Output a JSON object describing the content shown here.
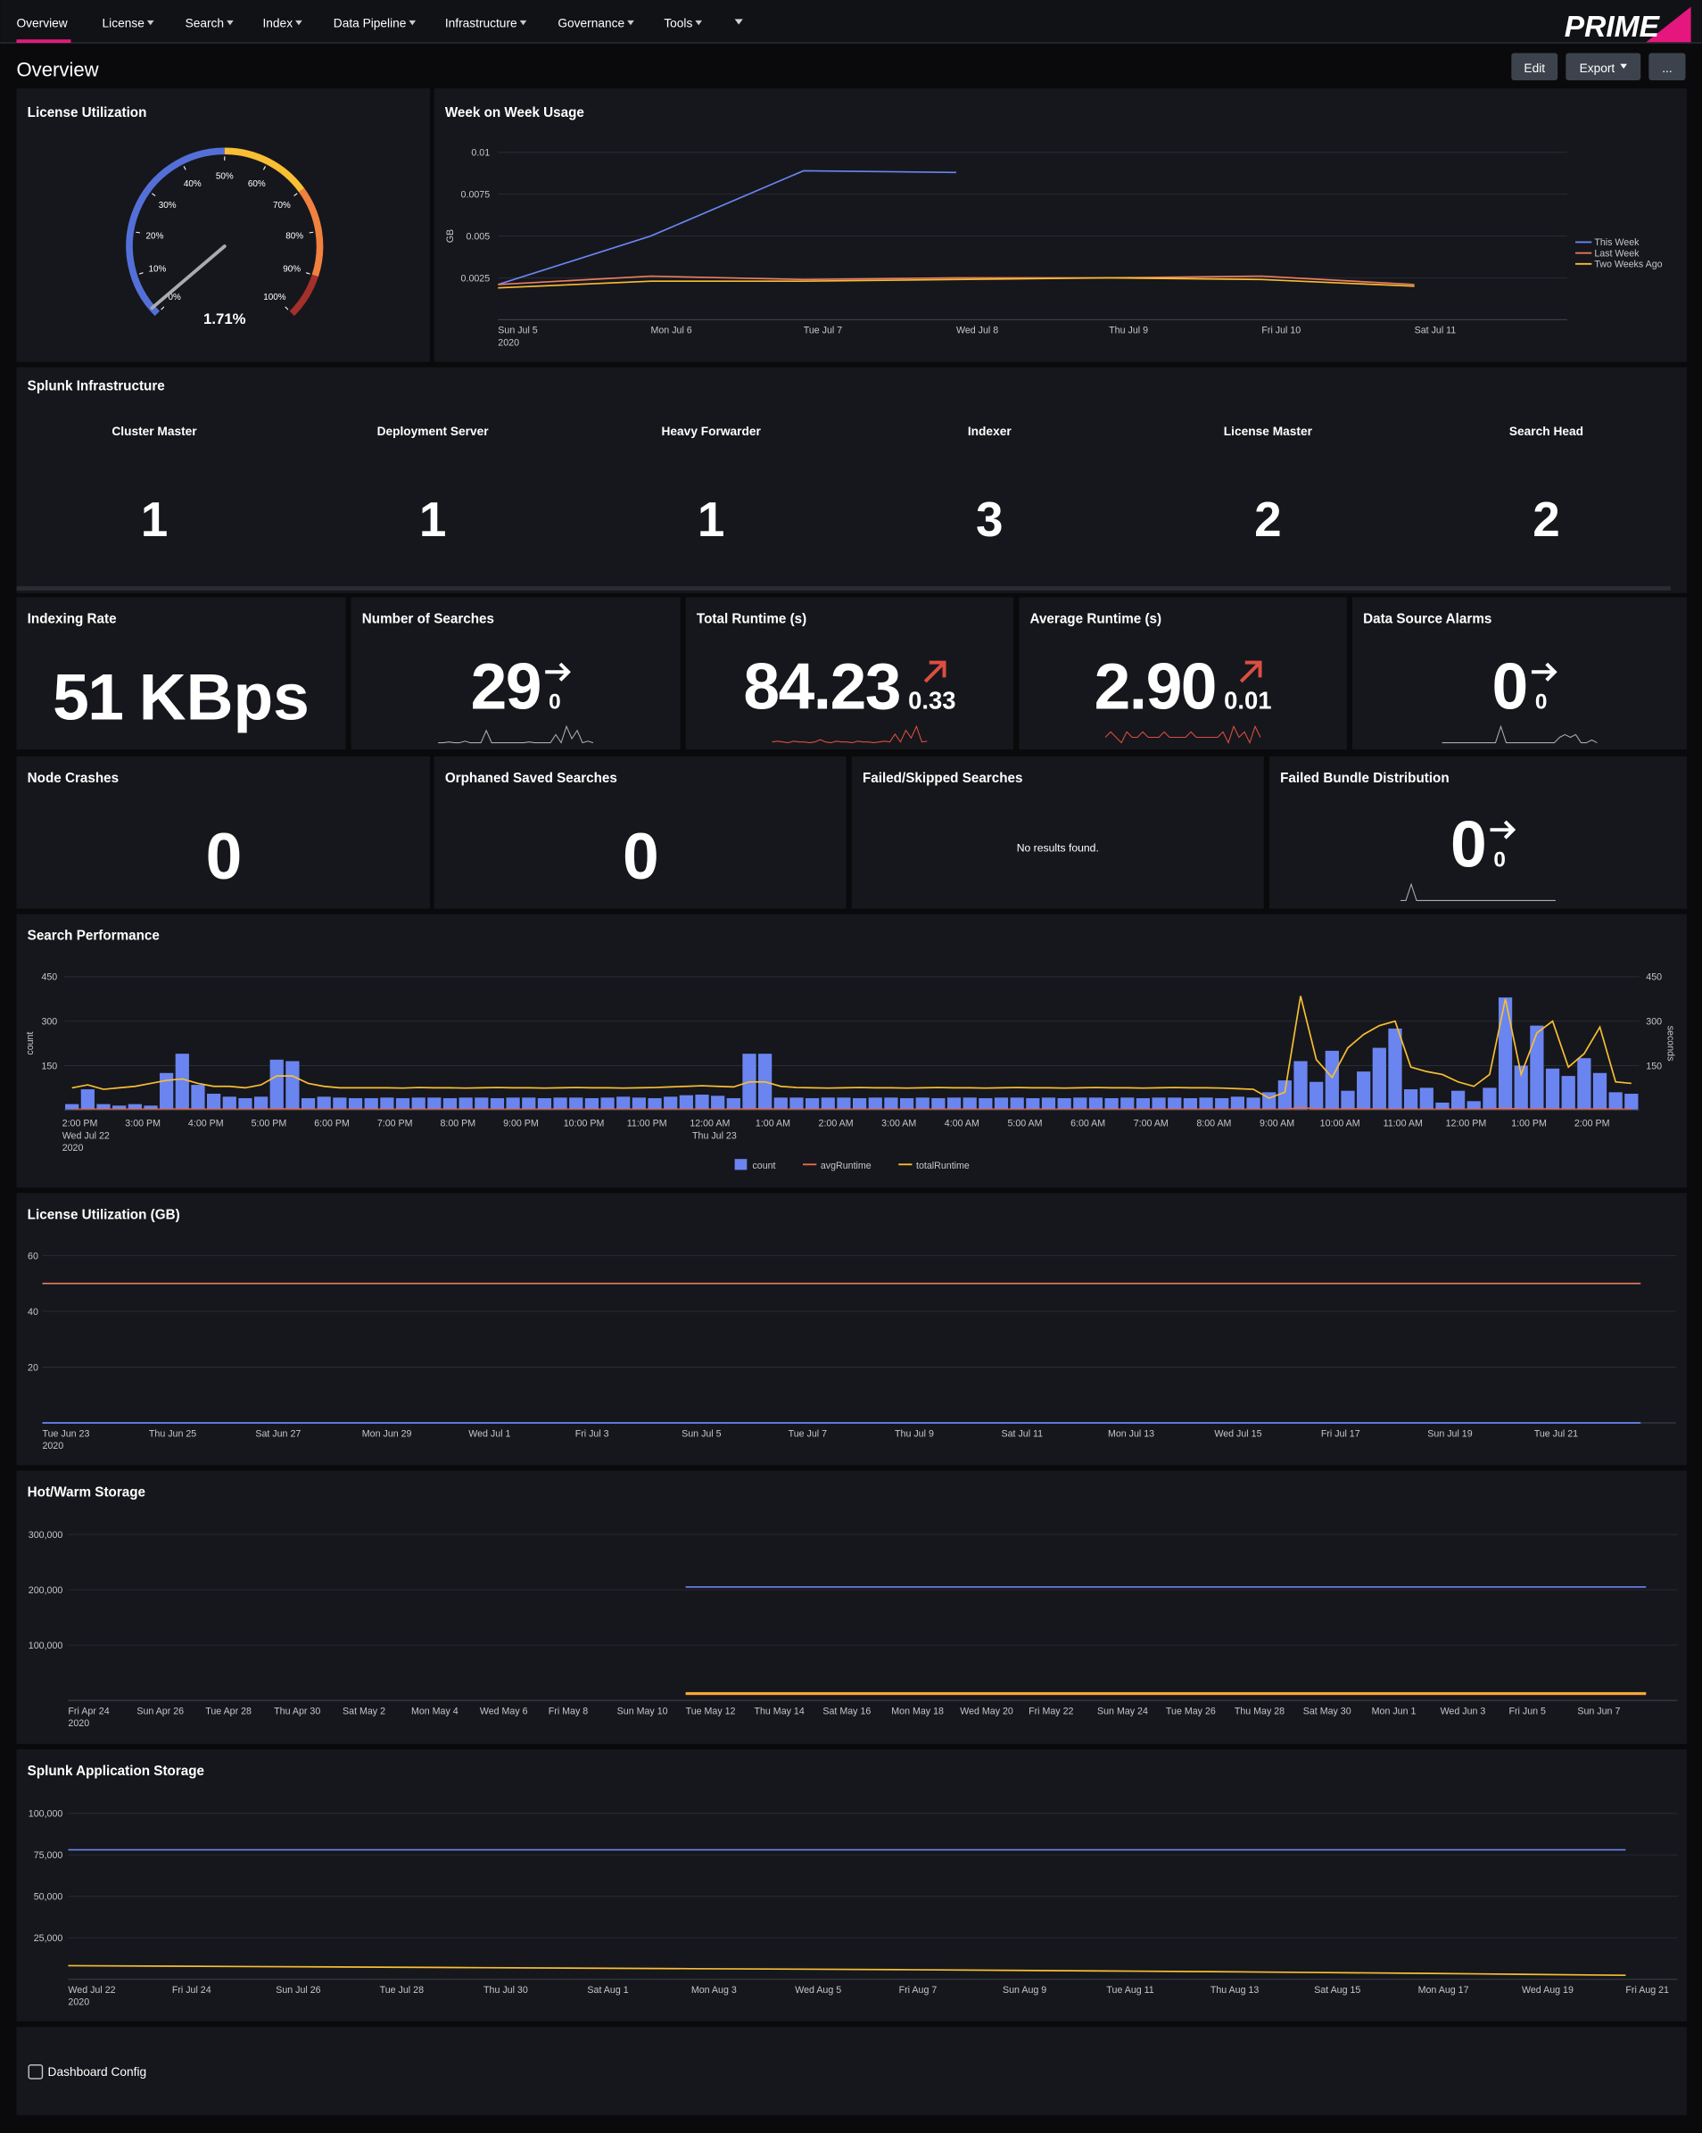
{
  "nav": {
    "items": [
      "Overview",
      "License",
      "Search",
      "Index",
      "Data Pipeline",
      "Infrastructure",
      "Governance",
      "Tools"
    ],
    "logo": "PRIME"
  },
  "header": {
    "title": "Overview",
    "buttons": [
      "Edit",
      "Export",
      "..."
    ]
  },
  "license_gauge": {
    "type": "gauge",
    "title": "License Utilization",
    "value": 1.71,
    "value_label": "1.71%",
    "range": [
      0,
      100
    ],
    "ticks": [
      {
        "value": 0,
        "label": "0%"
      },
      {
        "value": 10,
        "label": "10%"
      },
      {
        "value": 20,
        "label": "20%"
      },
      {
        "value": 30,
        "label": "30%"
      },
      {
        "value": 40,
        "label": "40%"
      },
      {
        "value": 50,
        "label": "50%"
      },
      {
        "value": 60,
        "label": "60%"
      },
      {
        "value": 70,
        "label": "70%"
      },
      {
        "value": 80,
        "label": "80%"
      },
      {
        "value": 90,
        "label": "90%"
      },
      {
        "value": 100,
        "label": "100%"
      }
    ],
    "bands": [
      {
        "from": 0,
        "to": 50,
        "color": "#5470d8"
      },
      {
        "from": 50,
        "to": 70,
        "color": "#f8be34"
      },
      {
        "from": 70,
        "to": 90,
        "color": "#f1813f"
      },
      {
        "from": 90,
        "to": 100,
        "color": "#a3302a"
      }
    ]
  },
  "week_usage": {
    "type": "line",
    "title": "Week on Week Usage",
    "y_label": "GB",
    "categories": [
      [
        "Sun Jul 5",
        "2020"
      ],
      [
        "Mon Jul 6"
      ],
      [
        "Tue Jul 7"
      ],
      [
        "Wed Jul 8"
      ],
      [
        "Thu Jul 9"
      ],
      [
        "Fri Jul 10"
      ],
      [
        "Sat Jul 11"
      ],
      null
    ],
    "ylim": [
      0,
      0.01
    ],
    "yticks": [
      0.0025,
      0.005,
      0.0075,
      0.01
    ],
    "grid": true,
    "legend": "right",
    "series": [
      {
        "name": "This Week",
        "color": "#6a85f0",
        "values": [
          0.0021,
          0.005,
          0.0089,
          0.0088,
          null,
          null,
          null,
          null
        ]
      },
      {
        "name": "Last Week",
        "color": "#ee7d5f",
        "values": [
          0.0021,
          0.0026,
          0.0024,
          0.0025,
          0.0025,
          0.0026,
          0.0021,
          null
        ]
      },
      {
        "name": "Two Weeks Ago",
        "color": "#f8be34",
        "values": [
          0.0019,
          0.0023,
          0.0023,
          0.0024,
          0.0025,
          0.0024,
          0.002,
          null
        ]
      }
    ]
  },
  "infrastructure": {
    "title": "Splunk Infrastructure",
    "items": [
      {
        "label": "Cluster Master",
        "value": 1
      },
      {
        "label": "Deployment Server",
        "value": 1
      },
      {
        "label": "Heavy Forwarder",
        "value": 1
      },
      {
        "label": "Indexer",
        "value": 3
      },
      {
        "label": "License Master",
        "value": 2
      },
      {
        "label": "Search Head",
        "value": 2
      }
    ]
  },
  "singles": [
    {
      "title": "Indexing Rate",
      "value": 51,
      "unit": "KBps"
    },
    {
      "title": "Number of Searches",
      "value": 29,
      "delta": 0,
      "trend": [
        40,
        40,
        41,
        40,
        40,
        42,
        40,
        40,
        40,
        55,
        40,
        40,
        40,
        40,
        40,
        40,
        40,
        41,
        40,
        40,
        40,
        40,
        50,
        40,
        60,
        45,
        55,
        40,
        42,
        40
      ]
    },
    {
      "title": "Total Runtime (s)",
      "value": 84.23,
      "delta": 0.33,
      "delta_color": "#dc4e41",
      "trend": [
        75,
        76,
        75,
        74,
        76,
        75,
        75,
        74,
        75,
        78,
        75,
        74,
        76,
        75,
        75,
        74,
        76,
        75,
        75,
        74,
        75,
        76,
        75,
        85,
        75,
        90,
        80,
        95,
        75,
        76
      ]
    },
    {
      "title": "Average Runtime (s)",
      "value": 2.9,
      "value_label": "2.90",
      "delta": 0.01,
      "delta_color": "#dc4e41",
      "trend": [
        3,
        4,
        3,
        2,
        4,
        3,
        3,
        4,
        3,
        3,
        3,
        4,
        3,
        3,
        3,
        3,
        4,
        3,
        3,
        3,
        3,
        3,
        4,
        2,
        5,
        3,
        4,
        2,
        5,
        3
      ]
    },
    {
      "title": "Data Source Alarms",
      "value": 0,
      "delta": 0,
      "color": "#53a051",
      "trend": [
        0,
        0,
        0,
        0,
        0,
        0,
        0,
        0,
        0,
        0,
        0,
        6,
        0,
        0,
        0,
        0,
        0,
        0,
        0,
        0,
        0,
        0,
        2,
        3,
        2,
        3,
        0,
        0,
        1,
        0
      ]
    }
  ],
  "singles2": [
    {
      "title": "Node Crashes",
      "value": 0
    },
    {
      "title": "Orphaned Saved Searches",
      "value": 0
    },
    {
      "title": "Failed/Skipped Searches",
      "message": "No results found."
    },
    {
      "title": "Failed Bundle Distribution",
      "value": 0,
      "delta": 0,
      "color": "#53a051",
      "trend": [
        0,
        0,
        10,
        0,
        0,
        0,
        0,
        0,
        0,
        0,
        0,
        0,
        0,
        0,
        0,
        0,
        0,
        0,
        0,
        0,
        0,
        0,
        0,
        0,
        0,
        0,
        0,
        0,
        0,
        0
      ]
    }
  ],
  "search_performance": {
    "type": "combo",
    "title": "Search Performance",
    "y_label": "count",
    "y2_label": "seconds",
    "xticks": [
      [
        "2:00 PM",
        "Wed Jul 22",
        "2020"
      ],
      [
        "3:00 PM"
      ],
      [
        "4:00 PM"
      ],
      [
        "5:00 PM"
      ],
      [
        "6:00 PM"
      ],
      [
        "7:00 PM"
      ],
      [
        "8:00 PM"
      ],
      [
        "9:00 PM"
      ],
      [
        "10:00 PM"
      ],
      [
        "11:00 PM"
      ],
      [
        "12:00 AM",
        "Thu Jul 23"
      ],
      [
        "1:00 AM"
      ],
      [
        "2:00 AM"
      ],
      [
        "3:00 AM"
      ],
      [
        "4:00 AM"
      ],
      [
        "5:00 AM"
      ],
      [
        "6:00 AM"
      ],
      [
        "7:00 AM"
      ],
      [
        "8:00 AM"
      ],
      [
        "9:00 AM"
      ],
      [
        "10:00 AM"
      ],
      [
        "11:00 AM"
      ],
      [
        "12:00 PM"
      ],
      [
        "1:00 PM"
      ],
      [
        "2:00 PM"
      ]
    ],
    "ylim": [
      0,
      450
    ],
    "yticks": [
      150,
      300,
      450
    ],
    "y2lim": [
      0,
      450
    ],
    "y2ticks": [
      150,
      300,
      450
    ],
    "grid": true,
    "legend": "bottom",
    "series": [
      {
        "name": "count",
        "type": "bar",
        "color": "#6a85f0",
        "values": [
          20,
          70,
          20,
          15,
          20,
          15,
          125,
          190,
          85,
          55,
          45,
          40,
          45,
          170,
          165,
          40,
          45,
          42,
          40,
          40,
          42,
          40,
          42,
          42,
          40,
          42,
          42,
          40,
          42,
          42,
          40,
          42,
          42,
          40,
          42,
          45,
          42,
          40,
          45,
          50,
          52,
          48,
          40,
          190,
          190,
          42,
          42,
          40,
          42,
          42,
          40,
          42,
          42,
          40,
          42,
          40,
          42,
          42,
          40,
          42,
          42,
          40,
          42,
          40,
          42,
          42,
          40,
          42,
          40,
          42,
          42,
          40,
          42,
          40,
          45,
          42,
          60,
          100,
          165,
          95,
          200,
          65,
          130,
          210,
          275,
          70,
          75,
          25,
          65,
          30,
          75,
          380,
          150,
          285,
          140,
          115,
          175,
          125,
          60,
          55
        ]
      },
      {
        "name": "avgRuntime",
        "type": "line",
        "axis": "y2",
        "color": "#ee6a4f",
        "values": [
          2,
          3,
          3,
          3,
          3,
          3,
          3,
          4,
          3,
          3,
          3,
          3,
          3,
          4,
          4,
          3,
          3,
          3,
          3,
          3,
          3,
          3,
          3,
          3,
          3,
          3,
          3,
          3,
          3,
          3,
          3,
          3,
          3,
          3,
          3,
          3,
          3,
          3,
          3,
          3,
          3,
          3,
          3,
          4,
          4,
          3,
          3,
          3,
          3,
          3,
          3,
          3,
          3,
          3,
          3,
          3,
          3,
          3,
          3,
          3,
          3,
          3,
          3,
          3,
          3,
          3,
          3,
          3,
          3,
          3,
          3,
          3,
          3,
          3,
          3,
          3,
          3,
          2,
          8,
          4,
          3,
          4,
          4,
          3,
          3,
          3,
          3,
          3,
          3,
          3,
          3,
          6,
          3,
          4,
          4,
          3,
          3,
          4,
          3,
          3
        ]
      },
      {
        "name": "totalRuntime",
        "type": "line",
        "axis": "y2",
        "color": "#f8be34",
        "values": [
          75,
          85,
          70,
          75,
          80,
          90,
          100,
          105,
          90,
          80,
          80,
          75,
          85,
          115,
          115,
          90,
          80,
          75,
          75,
          75,
          75,
          74,
          76,
          75,
          75,
          74,
          75,
          76,
          75,
          75,
          74,
          75,
          76,
          75,
          75,
          74,
          75,
          76,
          78,
          80,
          82,
          80,
          78,
          95,
          95,
          80,
          76,
          75,
          74,
          75,
          76,
          75,
          75,
          74,
          75,
          76,
          75,
          75,
          74,
          75,
          76,
          75,
          75,
          74,
          75,
          76,
          75,
          75,
          74,
          75,
          76,
          75,
          75,
          74,
          72,
          70,
          40,
          60,
          385,
          170,
          110,
          210,
          255,
          285,
          300,
          145,
          130,
          120,
          95,
          80,
          120,
          375,
          120,
          260,
          300,
          145,
          190,
          280,
          95,
          90
        ]
      }
    ]
  },
  "license_gb": {
    "type": "line",
    "title": "License Utilization (GB)",
    "categories": [
      [
        "Tue Jun 23",
        "2020"
      ],
      [
        "Thu Jun 25"
      ],
      [
        "Sat Jun 27"
      ],
      [
        "Mon Jun 29"
      ],
      [
        "Wed Jul 1"
      ],
      [
        "Fri Jul 3"
      ],
      [
        "Sun Jul 5"
      ],
      [
        "Tue Jul 7"
      ],
      [
        "Thu Jul 9"
      ],
      [
        "Sat Jul 11"
      ],
      [
        "Mon Jul 13"
      ],
      [
        "Wed Jul 15"
      ],
      [
        "Fri Jul 17"
      ],
      [
        "Sun Jul 19"
      ],
      [
        "Tue Jul 21"
      ],
      null
    ],
    "ylim": [
      0,
      60
    ],
    "yticks": [
      20,
      40,
      60
    ],
    "grid": true,
    "series": [
      {
        "color": "#ee7d5f",
        "values": [
          50,
          50,
          50,
          50,
          50,
          50,
          50,
          50,
          50,
          50,
          50,
          50,
          50,
          50,
          50,
          50
        ]
      },
      {
        "color": "#6a85f0",
        "values": [
          0.01,
          0.01,
          0.01,
          0.01,
          0.01,
          0.01,
          0.01,
          0.01,
          0.01,
          0.01,
          0.01,
          0.01,
          0.01,
          0.01,
          0.01,
          0.01
        ]
      }
    ]
  },
  "hot_warm": {
    "type": "line",
    "title": "Hot/Warm Storage",
    "categories": [
      [
        "Fri Apr 24",
        "2020"
      ],
      [
        "Sun Apr 26"
      ],
      [
        "Tue Apr 28"
      ],
      [
        "Thu Apr 30"
      ],
      [
        "Sat May 2"
      ],
      [
        "Mon May 4"
      ],
      [
        "Wed May 6"
      ],
      [
        "Fri May 8"
      ],
      [
        "Sun May 10"
      ],
      [
        "Tue May 12"
      ],
      [
        "Thu May 14"
      ],
      [
        "Sat May 16"
      ],
      [
        "Mon May 18"
      ],
      [
        "Wed May 20"
      ],
      [
        "Fri May 22"
      ],
      [
        "Sun May 24"
      ],
      [
        "Tue May 26"
      ],
      [
        "Thu May 28"
      ],
      [
        "Sat May 30"
      ],
      [
        "Mon Jun 1"
      ],
      [
        "Wed Jun 3"
      ],
      [
        "Fri Jun 5"
      ],
      [
        "Sun Jun 7"
      ],
      null
    ],
    "ylim": [
      0,
      300000
    ],
    "yticks": [
      {
        "value": 100000,
        "label": "100,000"
      },
      {
        "value": 200000,
        "label": "200,000"
      },
      {
        "value": 300000,
        "label": "300,000"
      }
    ],
    "grid": true,
    "series": [
      {
        "color": "#6a85f0",
        "values": [
          null,
          null,
          null,
          null,
          null,
          null,
          null,
          null,
          null,
          205000,
          205000,
          205000,
          205000,
          205000,
          205000,
          205000,
          205000,
          205000,
          205000,
          205000,
          205000,
          205000,
          205000,
          205000
        ]
      },
      {
        "color": "#f58f39",
        "values": [
          null,
          null,
          null,
          null,
          null,
          null,
          null,
          null,
          null,
          11000,
          11000,
          11000,
          11000,
          11000,
          11000,
          11000,
          11000,
          11000,
          11000,
          11000,
          11000,
          11000,
          11000,
          11000
        ]
      },
      {
        "color": "#f8be34",
        "values": [
          null,
          null,
          null,
          null,
          null,
          null,
          null,
          null,
          null,
          13500,
          13500,
          13500,
          13500,
          13500,
          13500,
          13500,
          13500,
          13500,
          13500,
          13500,
          13500,
          13500,
          13500,
          13500
        ]
      }
    ]
  },
  "app_storage": {
    "type": "line",
    "title": "Splunk Application Storage",
    "categories": [
      [
        "Wed Jul 22",
        "2020"
      ],
      [
        "Fri Jul 24"
      ],
      [
        "Sun Jul 26"
      ],
      [
        "Tue Jul 28"
      ],
      [
        "Thu Jul 30"
      ],
      [
        "Sat Aug 1"
      ],
      [
        "Mon Aug 3"
      ],
      [
        "Wed Aug 5"
      ],
      [
        "Fri Aug 7"
      ],
      [
        "Sun Aug 9"
      ],
      [
        "Tue Aug 11"
      ],
      [
        "Thu Aug 13"
      ],
      [
        "Sat Aug 15"
      ],
      [
        "Mon Aug 17"
      ],
      [
        "Wed Aug 19"
      ],
      [
        "Fri Aug 21"
      ]
    ],
    "ylim": [
      0,
      100000
    ],
    "yticks": [
      {
        "value": 25000,
        "label": "25,000"
      },
      {
        "value": 50000,
        "label": "50,000"
      },
      {
        "value": 75000,
        "label": "75,000"
      },
      {
        "value": 100000,
        "label": "100,000"
      }
    ],
    "grid": true,
    "series": [
      {
        "color": "#6a85f0",
        "values": [
          78000,
          78000,
          78000,
          78000,
          78000,
          78000,
          78000,
          78000,
          78000,
          78000,
          78000,
          78000,
          78000,
          78000,
          78000,
          78000
        ]
      },
      {
        "color": "#f8be34",
        "values": [
          8200,
          7900,
          7600,
          7300,
          7000,
          6700,
          6400,
          6100,
          5800,
          5400,
          5000,
          4600,
          4100,
          3600,
          3000,
          2400
        ]
      }
    ]
  },
  "config": {
    "label": "Dashboard Config"
  }
}
